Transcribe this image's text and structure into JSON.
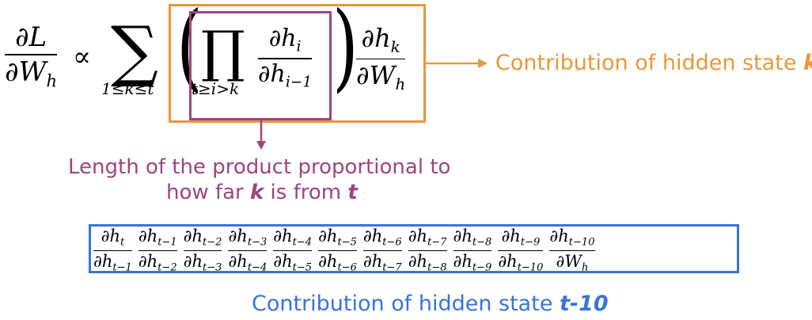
{
  "colors": {
    "orange": "#e8983a",
    "purple": "#a0457a",
    "blue": "#3a74d6",
    "black": "#000000"
  },
  "equation": {
    "lhs_num": "∂L",
    "lhs_den_base": "∂W",
    "lhs_den_sub": "h",
    "propto": "∝",
    "sum_symbol": "∑",
    "sum_limits": "1≤k≤t",
    "left_paren": "(",
    "right_paren": ")",
    "prod_symbol": "∏",
    "prod_limits": "t≥i>k",
    "inner_num_base": "∂h",
    "inner_num_sub": "i",
    "inner_den_base": "∂h",
    "inner_den_sub": "i−1",
    "outer_num_base": "∂h",
    "outer_num_sub": "k",
    "outer_den_base": "∂W",
    "outer_den_sub": "h"
  },
  "annotations": {
    "orange_label": "Contribution of hidden state ",
    "orange_var": "k",
    "purple_line1": "Length of the product proportional to",
    "purple_line2_pre": "how far ",
    "purple_line2_var1": "k",
    "purple_line2_mid": " is from ",
    "purple_line2_var2": "t",
    "blue_label": "Contribution of  hidden state ",
    "blue_var": "t-10"
  },
  "chain": [
    {
      "num_sub": "t",
      "den_base": "∂h",
      "den_sub": "t−1"
    },
    {
      "num_sub": "t−1",
      "den_base": "∂h",
      "den_sub": "t−2"
    },
    {
      "num_sub": "t−2",
      "den_base": "∂h",
      "den_sub": "t−3"
    },
    {
      "num_sub": "t−3",
      "den_base": "∂h",
      "den_sub": "t−4"
    },
    {
      "num_sub": "t−4",
      "den_base": "∂h",
      "den_sub": "t−5"
    },
    {
      "num_sub": "t−5",
      "den_base": "∂h",
      "den_sub": "t−6"
    },
    {
      "num_sub": "t−6",
      "den_base": "∂h",
      "den_sub": "t−7"
    },
    {
      "num_sub": "t−7",
      "den_base": "∂h",
      "den_sub": "t−8"
    },
    {
      "num_sub": "t−8",
      "den_base": "∂h",
      "den_sub": "t−9"
    },
    {
      "num_sub": "t−9",
      "den_base": "∂h",
      "den_sub": "t−10"
    },
    {
      "num_sub": "t−10",
      "den_base": "∂W",
      "den_sub": "h"
    }
  ]
}
